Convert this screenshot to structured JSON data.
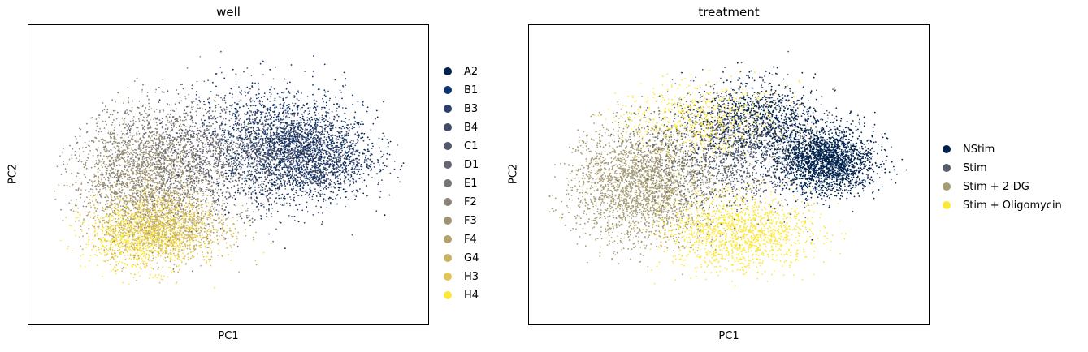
{
  "chart_data": [
    {
      "type": "scatter",
      "title": "well",
      "xlabel": "PC1",
      "ylabel": "PC2",
      "xlim": [
        -10,
        10
      ],
      "ylim": [
        -8,
        8
      ],
      "xticks": "none",
      "yticks": "none",
      "grid": false,
      "legend_position": "right",
      "point_count_approx": 9000,
      "categories": [
        "A2",
        "B1",
        "B3",
        "B4",
        "C1",
        "D1",
        "E1",
        "F2",
        "F3",
        "F4",
        "G4",
        "H3",
        "H4"
      ],
      "colors": [
        "#00224e",
        "#0b326e",
        "#2b3e6d",
        "#424b6a",
        "#545a6e",
        "#656670",
        "#777576",
        "#8a8478",
        "#9e9375",
        "#b3a26d",
        "#c8b365",
        "#e0c654",
        "#fde737"
      ],
      "clusters": [
        {
          "category": "A2",
          "cx": 3.8,
          "cy": 1.0,
          "sx": 3.2,
          "sy": 2.2,
          "weight": 1.0
        },
        {
          "category": "B1",
          "cx": 2.5,
          "cy": 2.2,
          "sx": 3.6,
          "sy": 2.6,
          "weight": 1.0
        },
        {
          "category": "B3",
          "cx": 4.2,
          "cy": 0.8,
          "sx": 2.8,
          "sy": 2.0,
          "weight": 0.9
        },
        {
          "category": "B4",
          "cx": 3.6,
          "cy": 1.2,
          "sx": 3.0,
          "sy": 2.2,
          "weight": 0.9
        },
        {
          "category": "C1",
          "cx": 0.5,
          "cy": 1.5,
          "sx": 4.0,
          "sy": 2.8,
          "weight": 0.8
        },
        {
          "category": "D1",
          "cx": -0.5,
          "cy": 1.2,
          "sx": 4.0,
          "sy": 2.8,
          "weight": 0.8
        },
        {
          "category": "E1",
          "cx": -2.0,
          "cy": 0.5,
          "sx": 4.2,
          "sy": 3.0,
          "weight": 0.8
        },
        {
          "category": "F2",
          "cx": -4.2,
          "cy": 1.0,
          "sx": 3.2,
          "sy": 2.6,
          "weight": 1.0
        },
        {
          "category": "F3",
          "cx": -4.6,
          "cy": 0.2,
          "sx": 3.0,
          "sy": 2.6,
          "weight": 1.0
        },
        {
          "category": "F4",
          "cx": -3.8,
          "cy": -1.5,
          "sx": 3.0,
          "sy": 2.4,
          "weight": 0.9
        },
        {
          "category": "G4",
          "cx": -3.0,
          "cy": -2.6,
          "sx": 2.8,
          "sy": 1.8,
          "weight": 0.9
        },
        {
          "category": "H3",
          "cx": -3.6,
          "cy": -3.0,
          "sx": 2.8,
          "sy": 1.6,
          "weight": 1.0
        },
        {
          "category": "H4",
          "cx": -4.4,
          "cy": -3.3,
          "sx": 2.6,
          "sy": 1.6,
          "weight": 1.0
        }
      ]
    },
    {
      "type": "scatter",
      "title": "treatment",
      "xlabel": "PC1",
      "ylabel": "PC2",
      "xlim": [
        -10,
        10
      ],
      "ylim": [
        -8,
        8
      ],
      "xticks": "none",
      "yticks": "none",
      "grid": false,
      "legend_position": "right",
      "point_count_approx": 9000,
      "categories": [
        "NStim",
        "Stim",
        "Stim + 2-DG",
        "Stim + Oligomycin"
      ],
      "colors": [
        "#00224e",
        "#575c6d",
        "#a59c74",
        "#fde737"
      ],
      "clusters": [
        {
          "category": "NStim",
          "cx": 4.8,
          "cy": 0.8,
          "sx": 2.2,
          "sy": 1.6,
          "weight": 1.4
        },
        {
          "category": "NStim",
          "cx": 1.5,
          "cy": 3.0,
          "sx": 2.6,
          "sy": 1.8,
          "weight": 0.5
        },
        {
          "category": "Stim",
          "cx": 0.0,
          "cy": 1.5,
          "sx": 3.8,
          "sy": 2.8,
          "weight": 1.0
        },
        {
          "category": "Stim + 2-DG",
          "cx": -4.3,
          "cy": -0.5,
          "sx": 3.2,
          "sy": 2.8,
          "weight": 1.6
        },
        {
          "category": "Stim + Oligomycin",
          "cx": 0.5,
          "cy": -3.0,
          "sx": 3.4,
          "sy": 1.8,
          "weight": 0.9
        },
        {
          "category": "Stim + Oligomycin",
          "cx": -1.5,
          "cy": 3.0,
          "sx": 3.6,
          "sy": 1.8,
          "weight": 0.4
        }
      ]
    }
  ]
}
